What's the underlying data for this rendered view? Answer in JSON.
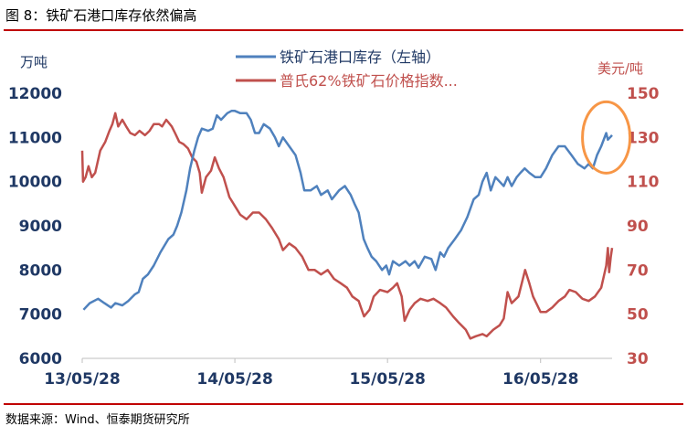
{
  "figure_title": "图 8：铁矿石港口库存依然偏高",
  "source": "数据来源：Wind、恒泰期货研究所",
  "chart_data": {
    "type": "line",
    "left_axis": {
      "unit": "万吨",
      "ylim": [
        6000,
        12000
      ],
      "ticks": [
        "6000",
        "7000",
        "8000",
        "9000",
        "10000",
        "11000",
        "12000"
      ]
    },
    "right_axis": {
      "unit": "美元/吨",
      "ylim": [
        30,
        150
      ],
      "ticks": [
        "30",
        "50",
        "70",
        "90",
        "110",
        "130",
        "150"
      ]
    },
    "x_axis": {
      "range": [
        "2013-05-28",
        "2016-11-15"
      ],
      "ticks": [
        {
          "date": "2013-05-28",
          "label": "13/05/28"
        },
        {
          "date": "2014-05-28",
          "label": "14/05/28"
        },
        {
          "date": "2015-05-28",
          "label": "15/05/28"
        },
        {
          "date": "2016-05-28",
          "label": "16/05/28"
        }
      ]
    },
    "grid": false,
    "legend": "top-center",
    "colors": {
      "stock": "#4f81bd",
      "price": "#c0504d",
      "left_text": "#1f3864",
      "right_text": "#c0504d",
      "rule": "#c00000",
      "highlight": "#f79646"
    },
    "series": [
      {
        "name": "铁矿石港口库存（左轴）",
        "axis": "left",
        "points": [
          [
            "2013-05-31",
            7100
          ],
          [
            "2013-06-15",
            7250
          ],
          [
            "2013-07-05",
            7350
          ],
          [
            "2013-07-20",
            7250
          ],
          [
            "2013-08-05",
            7150
          ],
          [
            "2013-08-15",
            7250
          ],
          [
            "2013-09-01",
            7200
          ],
          [
            "2013-09-15",
            7300
          ],
          [
            "2013-10-01",
            7450
          ],
          [
            "2013-10-10",
            7500
          ],
          [
            "2013-10-20",
            7800
          ],
          [
            "2013-11-01",
            7900
          ],
          [
            "2013-11-15",
            8100
          ],
          [
            "2013-12-01",
            8400
          ],
          [
            "2013-12-20",
            8700
          ],
          [
            "2014-01-01",
            8800
          ],
          [
            "2014-01-10",
            9000
          ],
          [
            "2014-01-20",
            9300
          ],
          [
            "2014-02-01",
            9800
          ],
          [
            "2014-02-10",
            10300
          ],
          [
            "2014-02-20",
            10700
          ],
          [
            "2014-03-01",
            11000
          ],
          [
            "2014-03-10",
            11200
          ],
          [
            "2014-03-25",
            11150
          ],
          [
            "2014-04-05",
            11200
          ],
          [
            "2014-04-15",
            11500
          ],
          [
            "2014-04-25",
            11400
          ],
          [
            "2014-05-10",
            11550
          ],
          [
            "2014-05-20",
            11600
          ],
          [
            "2014-05-28",
            11600
          ],
          [
            "2014-06-10",
            11550
          ],
          [
            "2014-06-25",
            11550
          ],
          [
            "2014-07-05",
            11400
          ],
          [
            "2014-07-15",
            11100
          ],
          [
            "2014-07-25",
            11100
          ],
          [
            "2014-08-05",
            11300
          ],
          [
            "2014-08-20",
            11200
          ],
          [
            "2014-09-01",
            11000
          ],
          [
            "2014-09-10",
            10800
          ],
          [
            "2014-09-20",
            11000
          ],
          [
            "2014-10-05",
            10800
          ],
          [
            "2014-10-20",
            10600
          ],
          [
            "2014-11-01",
            10200
          ],
          [
            "2014-11-10",
            9800
          ],
          [
            "2014-11-25",
            9800
          ],
          [
            "2014-12-10",
            9900
          ],
          [
            "2014-12-20",
            9700
          ],
          [
            "2015-01-05",
            9800
          ],
          [
            "2015-01-15",
            9600
          ],
          [
            "2015-02-01",
            9800
          ],
          [
            "2015-02-15",
            9900
          ],
          [
            "2015-03-01",
            9700
          ],
          [
            "2015-03-10",
            9500
          ],
          [
            "2015-03-20",
            9300
          ],
          [
            "2015-04-01",
            8700
          ],
          [
            "2015-04-10",
            8500
          ],
          [
            "2015-04-20",
            8300
          ],
          [
            "2015-05-01",
            8200
          ],
          [
            "2015-05-15",
            8000
          ],
          [
            "2015-05-25",
            8100
          ],
          [
            "2015-06-01",
            7900
          ],
          [
            "2015-06-10",
            8200
          ],
          [
            "2015-06-25",
            8100
          ],
          [
            "2015-07-10",
            8200
          ],
          [
            "2015-07-20",
            8100
          ],
          [
            "2015-08-01",
            8200
          ],
          [
            "2015-08-10",
            8050
          ],
          [
            "2015-08-25",
            8300
          ],
          [
            "2015-09-10",
            8250
          ],
          [
            "2015-09-20",
            8000
          ],
          [
            "2015-10-01",
            8400
          ],
          [
            "2015-10-10",
            8300
          ],
          [
            "2015-10-20",
            8500
          ],
          [
            "2015-11-05",
            8700
          ],
          [
            "2015-11-20",
            8900
          ],
          [
            "2015-12-05",
            9200
          ],
          [
            "2015-12-20",
            9600
          ],
          [
            "2016-01-01",
            9700
          ],
          [
            "2016-01-10",
            10000
          ],
          [
            "2016-01-20",
            10200
          ],
          [
            "2016-01-30",
            9800
          ],
          [
            "2016-02-10",
            10100
          ],
          [
            "2016-02-20",
            10000
          ],
          [
            "2016-03-01",
            9900
          ],
          [
            "2016-03-10",
            10100
          ],
          [
            "2016-03-20",
            9900
          ],
          [
            "2016-04-01",
            10100
          ],
          [
            "2016-04-10",
            10200
          ],
          [
            "2016-04-20",
            10300
          ],
          [
            "2016-05-01",
            10200
          ],
          [
            "2016-05-15",
            10100
          ],
          [
            "2016-05-28",
            10100
          ],
          [
            "2016-06-10",
            10300
          ],
          [
            "2016-06-25",
            10600
          ],
          [
            "2016-07-10",
            10800
          ],
          [
            "2016-07-25",
            10800
          ],
          [
            "2016-08-10",
            10600
          ],
          [
            "2016-08-25",
            10400
          ],
          [
            "2016-09-10",
            10300
          ],
          [
            "2016-09-20",
            10400
          ],
          [
            "2016-09-30",
            10300
          ],
          [
            "2016-10-10",
            10600
          ],
          [
            "2016-10-20",
            10800
          ],
          [
            "2016-11-01",
            11100
          ],
          [
            "2016-11-05",
            10950
          ],
          [
            "2016-11-15",
            11050
          ]
        ]
      },
      {
        "name": "普氏62%铁矿石价格指数...",
        "axis": "right",
        "points": [
          [
            "2013-05-28",
            124
          ],
          [
            "2013-05-30",
            110
          ],
          [
            "2013-06-05",
            112
          ],
          [
            "2013-06-12",
            117
          ],
          [
            "2013-06-20",
            112
          ],
          [
            "2013-06-28",
            114
          ],
          [
            "2013-07-10",
            124
          ],
          [
            "2013-07-22",
            128
          ],
          [
            "2013-08-01",
            133
          ],
          [
            "2013-08-08",
            136
          ],
          [
            "2013-08-15",
            141
          ],
          [
            "2013-08-22",
            135
          ],
          [
            "2013-09-01",
            138
          ],
          [
            "2013-09-10",
            135
          ],
          [
            "2013-09-20",
            132
          ],
          [
            "2013-10-01",
            131
          ],
          [
            "2013-10-12",
            133
          ],
          [
            "2013-10-25",
            131
          ],
          [
            "2013-11-05",
            133
          ],
          [
            "2013-11-15",
            136
          ],
          [
            "2013-11-28",
            136
          ],
          [
            "2013-12-05",
            135
          ],
          [
            "2013-12-15",
            138
          ],
          [
            "2013-12-28",
            135
          ],
          [
            "2014-01-05",
            132
          ],
          [
            "2014-01-15",
            128
          ],
          [
            "2014-01-25",
            127
          ],
          [
            "2014-02-05",
            125
          ],
          [
            "2014-02-15",
            121
          ],
          [
            "2014-02-25",
            119
          ],
          [
            "2014-03-05",
            114
          ],
          [
            "2014-03-10",
            105
          ],
          [
            "2014-03-20",
            112
          ],
          [
            "2014-04-01",
            115
          ],
          [
            "2014-04-10",
            121
          ],
          [
            "2014-04-20",
            116
          ],
          [
            "2014-05-01",
            112
          ],
          [
            "2014-05-15",
            103
          ],
          [
            "2014-05-28",
            99
          ],
          [
            "2014-06-10",
            95
          ],
          [
            "2014-06-25",
            93
          ],
          [
            "2014-07-10",
            96
          ],
          [
            "2014-07-25",
            96
          ],
          [
            "2014-08-10",
            93
          ],
          [
            "2014-08-25",
            89
          ],
          [
            "2014-09-10",
            84
          ],
          [
            "2014-09-20",
            79
          ],
          [
            "2014-10-05",
            82
          ],
          [
            "2014-10-20",
            80
          ],
          [
            "2014-11-05",
            76
          ],
          [
            "2014-11-20",
            70
          ],
          [
            "2014-12-05",
            70
          ],
          [
            "2014-12-20",
            68
          ],
          [
            "2015-01-05",
            70
          ],
          [
            "2015-01-20",
            66
          ],
          [
            "2015-02-05",
            64
          ],
          [
            "2015-02-20",
            62
          ],
          [
            "2015-03-05",
            58
          ],
          [
            "2015-03-20",
            56
          ],
          [
            "2015-04-02",
            49
          ],
          [
            "2015-04-15",
            52
          ],
          [
            "2015-04-25",
            58
          ],
          [
            "2015-05-10",
            61
          ],
          [
            "2015-05-28",
            60
          ],
          [
            "2015-06-10",
            62
          ],
          [
            "2015-06-20",
            64
          ],
          [
            "2015-07-01",
            58
          ],
          [
            "2015-07-08",
            47
          ],
          [
            "2015-07-20",
            52
          ],
          [
            "2015-08-01",
            55
          ],
          [
            "2015-08-15",
            57
          ],
          [
            "2015-09-01",
            56
          ],
          [
            "2015-09-15",
            57
          ],
          [
            "2015-10-01",
            55
          ],
          [
            "2015-10-15",
            53
          ],
          [
            "2015-11-01",
            49
          ],
          [
            "2015-11-15",
            46
          ],
          [
            "2015-12-01",
            43
          ],
          [
            "2015-12-12",
            39
          ],
          [
            "2015-12-25",
            40
          ],
          [
            "2016-01-10",
            41
          ],
          [
            "2016-01-20",
            40
          ],
          [
            "2016-02-05",
            43
          ],
          [
            "2016-02-20",
            45
          ],
          [
            "2016-03-01",
            48
          ],
          [
            "2016-03-10",
            60
          ],
          [
            "2016-03-20",
            55
          ],
          [
            "2016-04-05",
            58
          ],
          [
            "2016-04-21",
            70
          ],
          [
            "2016-05-01",
            64
          ],
          [
            "2016-05-10",
            58
          ],
          [
            "2016-05-28",
            51
          ],
          [
            "2016-06-10",
            51
          ],
          [
            "2016-06-25",
            53
          ],
          [
            "2016-07-10",
            56
          ],
          [
            "2016-07-25",
            58
          ],
          [
            "2016-08-05",
            61
          ],
          [
            "2016-08-20",
            60
          ],
          [
            "2016-09-05",
            57
          ],
          [
            "2016-09-20",
            56
          ],
          [
            "2016-10-05",
            58
          ],
          [
            "2016-10-20",
            62
          ],
          [
            "2016-11-01",
            72
          ],
          [
            "2016-11-05",
            80
          ],
          [
            "2016-11-08",
            69
          ],
          [
            "2016-11-12",
            76
          ],
          [
            "2016-11-15",
            80
          ]
        ]
      }
    ],
    "annotation": {
      "shape": "ellipse",
      "around": "铁矿石港口库存（左轴）",
      "date": "2016-11-01",
      "value": 11000
    }
  }
}
